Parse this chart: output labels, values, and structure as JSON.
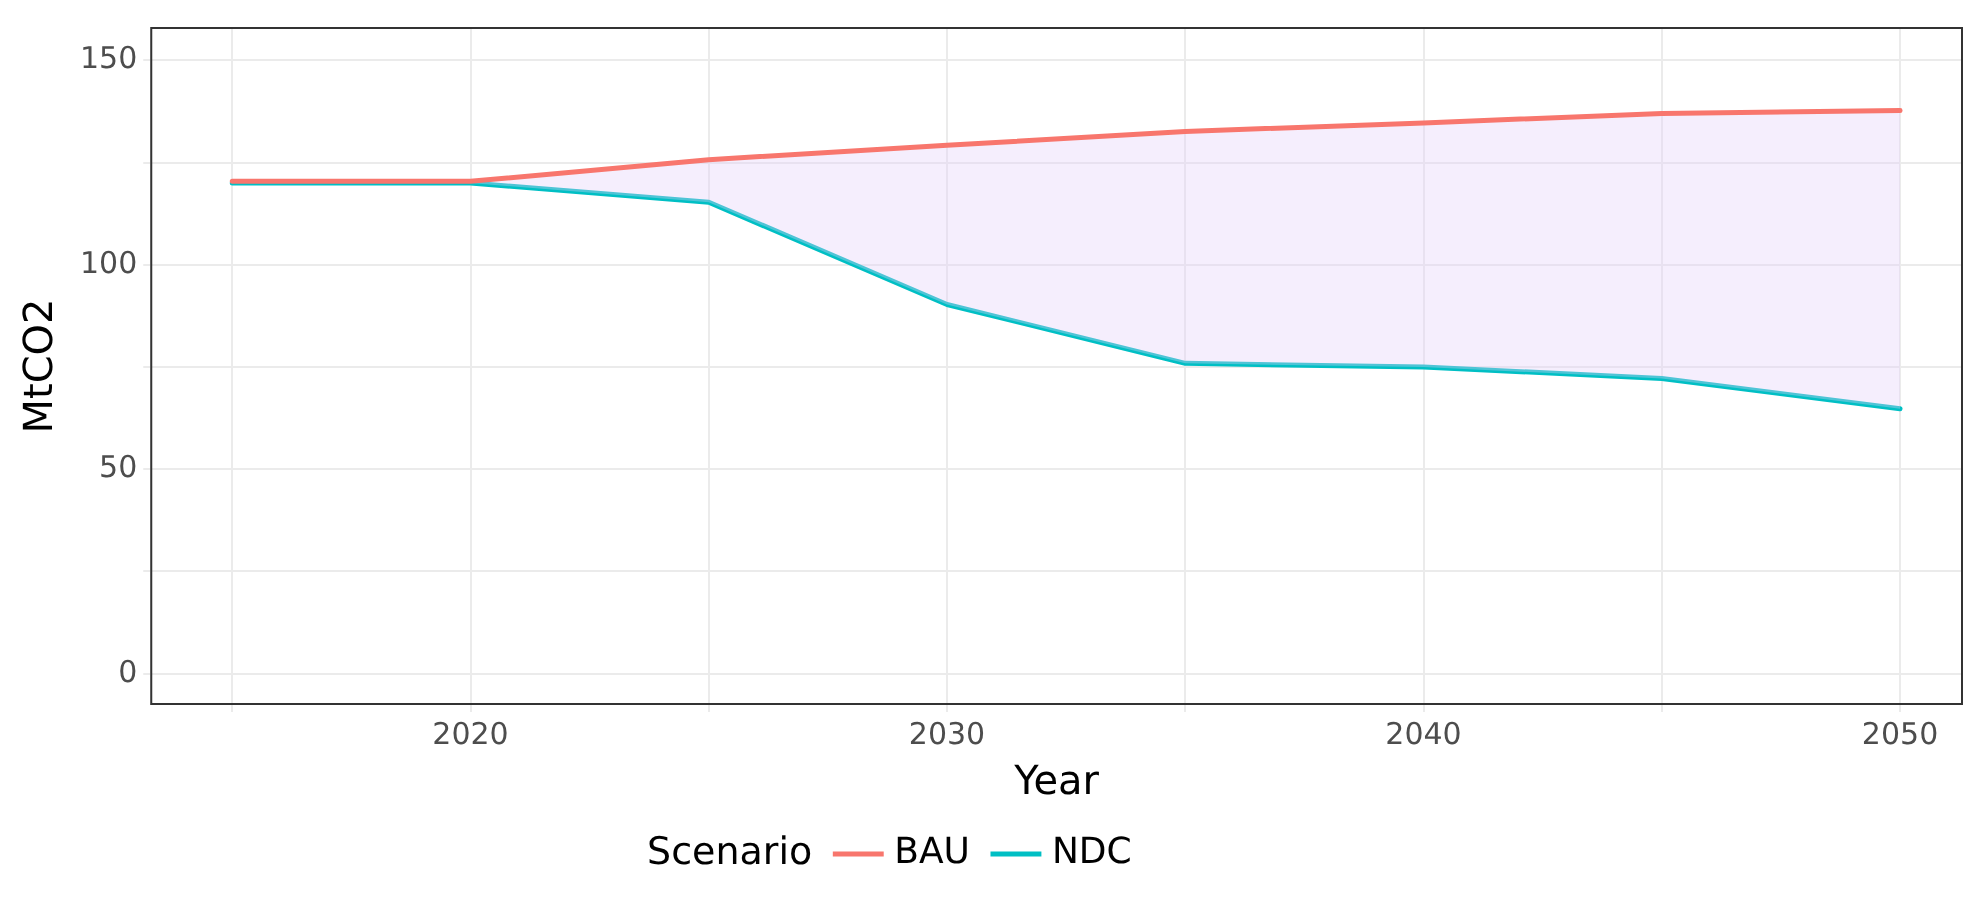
{
  "chart_data": {
    "type": "line",
    "xlabel": "Year",
    "ylabel": "MtCO2",
    "legend_title": "Scenario",
    "legend": "bottom",
    "grid": true,
    "x": [
      2015,
      2020,
      2025,
      2030,
      2035,
      2040,
      2045,
      2050
    ],
    "series": [
      {
        "name": "BAU",
        "color": "#f8766d",
        "values": [
          120.4,
          120.4,
          125.7,
          129.2,
          132.6,
          134.7,
          137,
          137.7
        ]
      },
      {
        "name": "NDC",
        "color": "#00bfc4",
        "values": [
          120,
          120,
          115.3,
          90.3,
          75.9,
          75,
          72.2,
          64.8
        ],
        "lower": [
          120,
          120,
          115.3,
          90.3,
          75.9,
          75,
          72.2,
          64.8
        ],
        "upper": [
          120.4,
          120.4,
          125.7,
          129.2,
          132.6,
          134.7,
          137,
          137.7
        ]
      }
    ],
    "xlim": [
      2013.3,
      2051.3
    ],
    "xticks": [
      {
        "value": 2015,
        "label": null
      },
      2020,
      {
        "value": 2025,
        "label": null
      },
      2030,
      {
        "value": 2035,
        "label": null
      },
      2040,
      {
        "value": 2045,
        "label": null
      },
      2050
    ],
    "ylim": [
      -7.4,
      157.9
    ],
    "yticks": [
      0,
      {
        "value": 25,
        "label": null
      },
      50,
      {
        "value": 75,
        "label": null
      },
      100,
      {
        "value": 125,
        "label": null
      },
      150
    ],
    "line_style": "solid",
    "marker": "none"
  }
}
